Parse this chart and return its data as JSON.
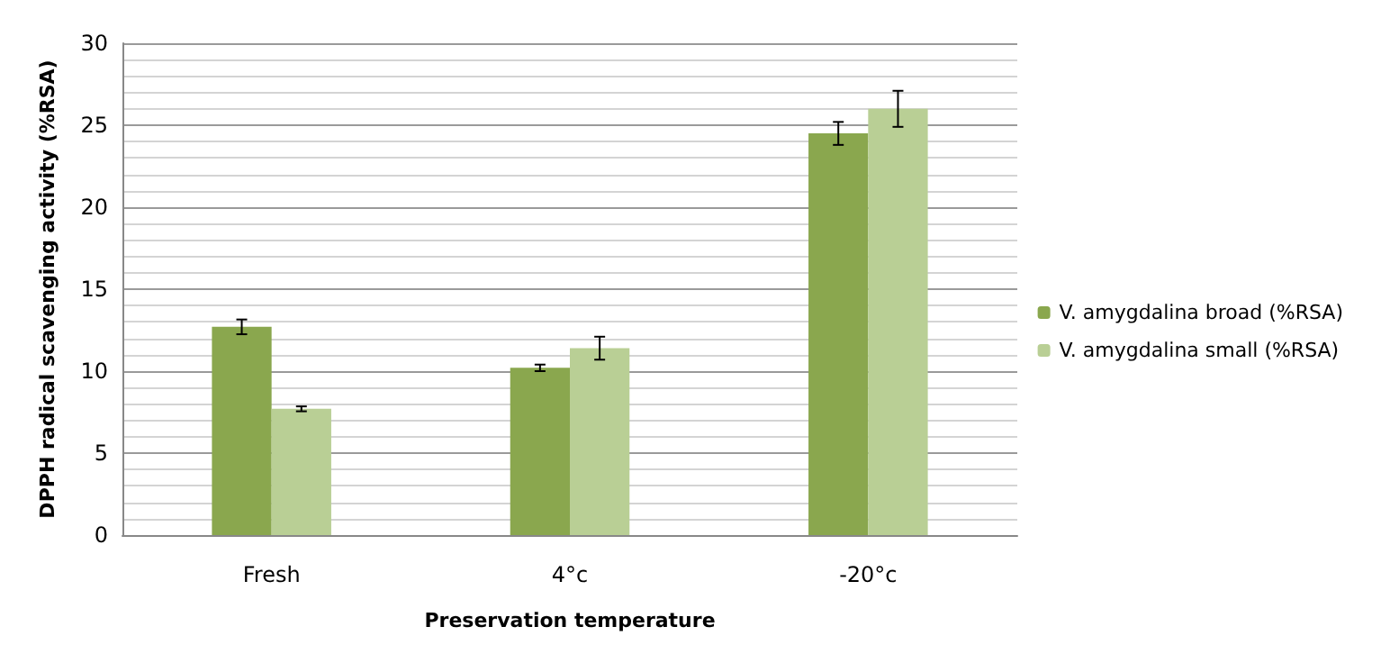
{
  "chart_data": {
    "type": "bar",
    "xlabel": "Preservation temperature",
    "ylabel": "DPPH radical scavenging activity (%RSA)",
    "categories": [
      "Fresh",
      "4°c",
      "-20°c"
    ],
    "series": [
      {
        "name": "V. amygdalina broad (%RSA)",
        "color": "#8aa74e",
        "values": [
          12.7,
          10.2,
          24.5
        ],
        "errors": [
          0.45,
          0.2,
          0.7
        ]
      },
      {
        "name": "V. amygdalina small (%RSA)",
        "color": "#b9cf95",
        "values": [
          7.7,
          11.4,
          26.0
        ],
        "errors": [
          0.15,
          0.7,
          1.1
        ]
      }
    ],
    "ylim": [
      0,
      30
    ],
    "yticks": [
      0,
      {
        "value": 1,
        "label": null
      },
      {
        "value": 2,
        "label": null
      },
      {
        "value": 3,
        "label": null
      },
      {
        "value": 4,
        "label": null
      },
      5,
      {
        "value": 6,
        "label": null
      },
      {
        "value": 7,
        "label": null
      },
      {
        "value": 8,
        "label": null
      },
      {
        "value": 9,
        "label": null
      },
      10,
      {
        "value": 11,
        "label": null
      },
      {
        "value": 12,
        "label": null
      },
      {
        "value": 13,
        "label": null
      },
      {
        "value": 14,
        "label": null
      },
      15,
      {
        "value": 16,
        "label": null
      },
      {
        "value": 17,
        "label": null
      },
      {
        "value": 18,
        "label": null
      },
      {
        "value": 19,
        "label": null
      },
      20,
      {
        "value": 21,
        "label": null
      },
      {
        "value": 22,
        "label": null
      },
      {
        "value": 23,
        "label": null
      },
      {
        "value": 24,
        "label": null
      },
      25,
      {
        "value": 26,
        "label": null
      },
      {
        "value": 27,
        "label": null
      },
      {
        "value": 28,
        "label": null
      },
      {
        "value": 29,
        "label": null
      },
      30
    ],
    "grid": "y",
    "legend": "right"
  }
}
